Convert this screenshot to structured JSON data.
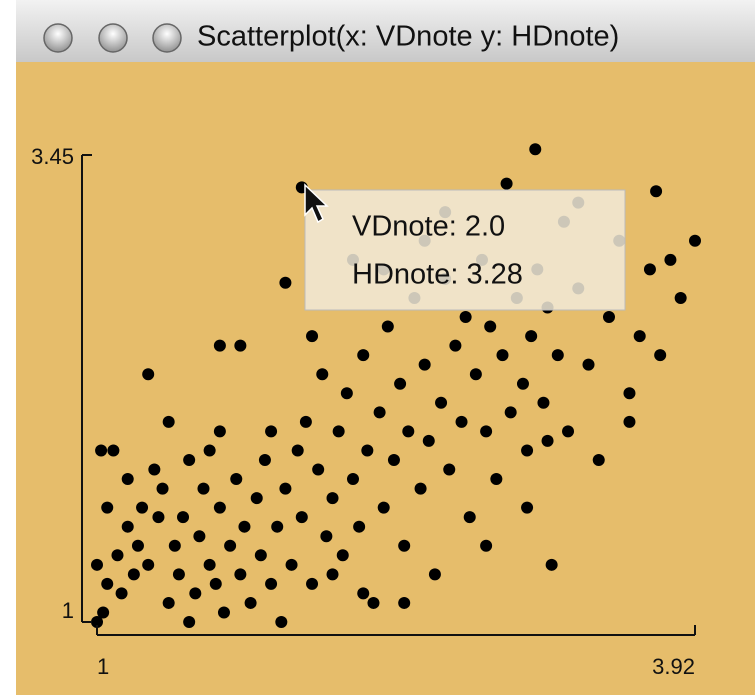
{
  "chart_data": {
    "type": "scatter",
    "title": "Scatterplot(x: VDnote y: HDnote)",
    "annotations": [
      "VDnote: 2.0",
      "HDnote: 3.28"
    ],
    "color": "#000000",
    "xlim": [
      1,
      3.92
    ],
    "xticks": [
      1,
      3.92
    ],
    "ylim": [
      1,
      3.45
    ],
    "yticks": [
      1,
      3.45
    ],
    "x": [
      1.0,
      1.03,
      1.05,
      1.0,
      1.02,
      1.08,
      1.1,
      1.12,
      1.15,
      1.2,
      1.18,
      1.25,
      1.22,
      1.3,
      1.28,
      1.35,
      1.38,
      1.32,
      1.4,
      1.42,
      1.45,
      1.48,
      1.5,
      1.52,
      1.55,
      1.58,
      1.6,
      1.62,
      1.65,
      1.55,
      1.68,
      1.7,
      1.72,
      1.75,
      1.78,
      1.8,
      1.82,
      1.85,
      1.88,
      1.9,
      1.92,
      1.95,
      1.98,
      2.0,
      2.02,
      2.05,
      2.08,
      2.1,
      2.12,
      2.15,
      2.18,
      2.2,
      2.22,
      2.25,
      2.28,
      2.3,
      2.32,
      2.35,
      2.38,
      2.4,
      2.42,
      2.45,
      2.48,
      2.5,
      2.52,
      2.55,
      2.58,
      2.6,
      2.62,
      2.65,
      2.68,
      2.7,
      2.72,
      2.75,
      2.78,
      2.8,
      2.82,
      2.85,
      2.88,
      2.9,
      2.92,
      2.95,
      2.98,
      3.0,
      3.02,
      3.05,
      3.08,
      3.1,
      3.12,
      3.14,
      3.15,
      3.18,
      3.2,
      3.22,
      3.25,
      3.28,
      3.3,
      3.35,
      3.4,
      3.45,
      3.5,
      3.55,
      3.6,
      3.65,
      3.7,
      3.73,
      3.75,
      3.8,
      3.85,
      3.92,
      1.92,
      2.0,
      1.6,
      1.7,
      1.25,
      1.15,
      2.25,
      2.4,
      2.6,
      2.7,
      3.35,
      3.6,
      2.15,
      2.3,
      1.45,
      1.05,
      1.35,
      1.6,
      1.85,
      2.05,
      2.5,
      2.9,
      3.1,
      3.2
    ],
    "y": [
      1.0,
      1.05,
      1.2,
      1.3,
      1.9,
      1.9,
      1.35,
      1.15,
      1.5,
      1.4,
      1.25,
      1.3,
      1.6,
      1.55,
      1.8,
      1.1,
      1.4,
      1.7,
      1.25,
      1.55,
      1.85,
      1.15,
      1.45,
      1.7,
      1.3,
      1.2,
      1.6,
      1.05,
      1.4,
      1.9,
      1.75,
      1.25,
      1.5,
      1.1,
      1.65,
      1.35,
      1.85,
      1.2,
      1.5,
      1.0,
      1.7,
      1.3,
      1.9,
      1.55,
      2.05,
      1.2,
      1.8,
      2.3,
      1.45,
      1.65,
      2.0,
      1.35,
      2.2,
      1.75,
      1.5,
      2.4,
      1.9,
      1.1,
      2.1,
      1.6,
      2.55,
      1.85,
      2.25,
      1.4,
      2.0,
      2.7,
      1.7,
      2.35,
      1.95,
      1.25,
      2.15,
      2.8,
      1.8,
      2.45,
      2.05,
      2.6,
      1.55,
      2.3,
      2.9,
      2.0,
      2.55,
      1.75,
      2.4,
      3.3,
      2.1,
      2.7,
      2.25,
      1.9,
      2.5,
      3.48,
      2.85,
      2.15,
      2.65,
      1.3,
      2.4,
      3.1,
      2.0,
      2.75,
      2.35,
      1.85,
      2.6,
      3.0,
      2.2,
      2.5,
      2.85,
      3.26,
      2.4,
      2.9,
      2.7,
      3.0,
      2.78,
      3.28,
      2.45,
      2.45,
      2.3,
      1.75,
      2.9,
      2.85,
      3.0,
      3.15,
      3.2,
      2.05,
      1.25,
      1.15,
      1.0,
      1.6,
      2.05,
      2.0,
      2.0,
      2.5,
      1.1,
      1.4,
      1.6,
      1.95
    ]
  }
}
